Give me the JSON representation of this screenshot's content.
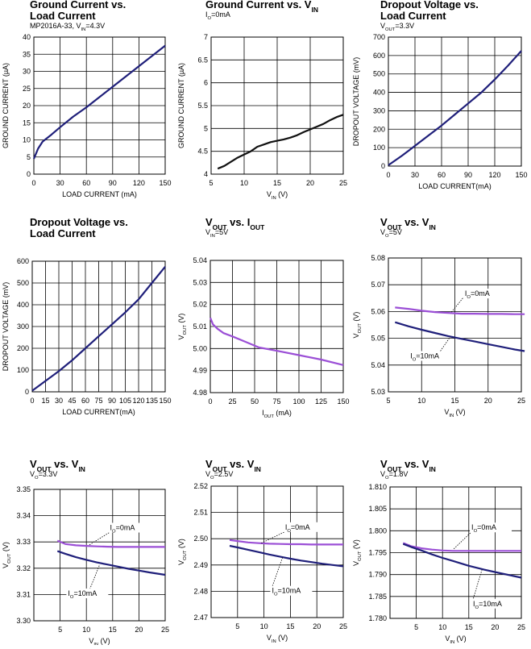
{
  "chart_data": [
    {
      "type": "line",
      "title": "Ground Current vs.",
      "title2": "Load Current",
      "subtitle": "MP2016A-33, V",
      "subtitle_sub": "IN",
      "subtitle_rest": "=4.3V",
      "xlabel": "LOAD CURRENT (mA)",
      "ylabel": "GROUND CURRENT (µA)",
      "xlim": [
        0,
        150
      ],
      "ylim": [
        0,
        40
      ],
      "xticks": [
        "0",
        "30",
        "60",
        "90",
        "120",
        "150"
      ],
      "yticks": [
        "0",
        "5",
        "10",
        "15",
        "20",
        "25",
        "30",
        "35",
        "40"
      ],
      "series": [
        {
          "color": "#1f1f7a",
          "x": [
            0,
            5,
            10,
            20,
            30,
            45,
            60,
            75,
            90,
            105,
            120,
            135,
            150
          ],
          "y": [
            4.5,
            7.5,
            9.5,
            11.5,
            13.7,
            16.8,
            19.5,
            22.5,
            25.5,
            28.5,
            31.5,
            34.5,
            37.5
          ]
        }
      ]
    },
    {
      "type": "line",
      "title": "Ground Current vs. V",
      "title_sub": "IN",
      "subtitle": "I",
      "subtitle_sub": "O",
      "subtitle_rest": "=0mA",
      "xlabel": "V",
      "xlabel_sub": "IN",
      "xlabel_rest": " (V)",
      "ylabel": "GROUND CURRENT (µA)",
      "xlim": [
        5,
        25
      ],
      "ylim": [
        4,
        7
      ],
      "xticks": [
        "5",
        "10",
        "15",
        "20",
        "25"
      ],
      "yticks": [
        "4",
        "4.5",
        "5",
        "5.5",
        "6",
        "6.5",
        "7"
      ],
      "series": [
        {
          "color": "#111111",
          "x": [
            6,
            7,
            8,
            9,
            10,
            11,
            12,
            13,
            14,
            15,
            16,
            17,
            18,
            19,
            20,
            21,
            22,
            23,
            24,
            25
          ],
          "y": [
            4.12,
            4.18,
            4.27,
            4.36,
            4.43,
            4.5,
            4.6,
            4.65,
            4.7,
            4.73,
            4.76,
            4.8,
            4.85,
            4.92,
            4.98,
            5.04,
            5.1,
            5.18,
            5.25,
            5.3
          ]
        }
      ]
    },
    {
      "type": "line",
      "title": "Dropout Voltage vs.",
      "title2": "Load Current",
      "subtitle": "V",
      "subtitle_sub": "OUT",
      "subtitle_rest": "=3.3V",
      "xlabel": "LOAD CURRENT(mA)",
      "ylabel": "DROPOUT VOLTAGE (mV)",
      "xlim": [
        0,
        150
      ],
      "ylim": [
        0,
        700
      ],
      "xticks": [
        "0",
        "30",
        "60",
        "90",
        "120",
        "150"
      ],
      "yticks": [
        "0",
        "100",
        "200",
        "300",
        "400",
        "500",
        "600",
        "700"
      ],
      "series": [
        {
          "color": "#1f1f7a",
          "x": [
            0,
            15,
            30,
            45,
            60,
            75,
            90,
            105,
            120,
            135,
            150
          ],
          "y": [
            5,
            55,
            110,
            165,
            220,
            280,
            340,
            400,
            470,
            545,
            625
          ]
        }
      ]
    },
    {
      "type": "line",
      "title": "Dropout Voltage vs.",
      "title2": "Load Current",
      "xlabel": "LOAD CURRENT(mA)",
      "ylabel": "DROPOUT VOLTAGE (mV)",
      "xlim": [
        0,
        150
      ],
      "ylim": [
        0,
        600
      ],
      "xticks": [
        "0",
        "15",
        "30",
        "45",
        "60",
        "75",
        "90",
        "105",
        "120",
        "135",
        "150"
      ],
      "yticks": [
        "0",
        "100",
        "200",
        "300",
        "400",
        "500",
        "600"
      ],
      "series": [
        {
          "color": "#1f1f7a",
          "x": [
            0,
            15,
            30,
            45,
            60,
            75,
            90,
            105,
            120,
            135,
            150
          ],
          "y": [
            5,
            50,
            95,
            145,
            200,
            255,
            310,
            365,
            425,
            500,
            575
          ]
        }
      ]
    },
    {
      "type": "line",
      "title": "V",
      "title_sub": "OUT",
      "title_rest": " vs. I",
      "title_sub2": "OUT",
      "subtitle": "V",
      "subtitle_sub": "IN",
      "subtitle_rest": "=5V",
      "xlabel": "I",
      "xlabel_sub": "OUT",
      "xlabel_rest": " (mA)",
      "ylabel": "V",
      "ylabel_sub": "OUT",
      "ylabel_rest": " (V)",
      "xlim": [
        0,
        150
      ],
      "ylim": [
        4.98,
        5.04
      ],
      "xticks": [
        "0",
        "25",
        "50",
        "75",
        "100",
        "125",
        "150"
      ],
      "yticks": [
        "4.98",
        "4.99",
        "5.00",
        "5.01",
        "5.02",
        "5.03",
        "5.04"
      ],
      "series": [
        {
          "color": "#9b4fd6",
          "x": [
            0,
            3,
            8,
            15,
            25,
            40,
            55,
            75,
            100,
            125,
            150
          ],
          "y": [
            5.014,
            5.011,
            5.009,
            5.007,
            5.0055,
            5.003,
            5.0005,
            4.999,
            4.997,
            4.995,
            4.9925
          ]
        }
      ]
    },
    {
      "type": "line",
      "title": "V",
      "title_sub": "OUT",
      "title_rest": " vs. V",
      "title_sub2": "IN",
      "subtitle": "V",
      "subtitle_sub": "O",
      "subtitle_rest": "=5V",
      "xlabel": "V",
      "xlabel_sub": "IN",
      "xlabel_rest": " (V)",
      "ylabel": "V",
      "ylabel_sub": "OUT",
      "ylabel_rest": " (V)",
      "xlim": [
        5,
        25
      ],
      "ylim": [
        5.03,
        5.08
      ],
      "xticks": [
        "5",
        "10",
        "15",
        "20",
        "25"
      ],
      "yticks": [
        "5.03",
        "5.04",
        "5.05",
        "5.06",
        "5.07",
        "5.08"
      ],
      "series": [
        {
          "color": "#9b4fd6",
          "x": [
            6,
            8,
            10,
            12,
            14,
            16,
            18,
            20,
            22,
            24,
            25.5
          ],
          "y": [
            5.0615,
            5.061,
            5.0603,
            5.0598,
            5.0595,
            5.0592,
            5.0592,
            5.0591,
            5.0591,
            5.059,
            5.059
          ]
        },
        {
          "color": "#1f1f7a",
          "x": [
            6,
            8,
            10,
            12,
            14,
            16,
            18,
            20,
            22,
            24,
            25.5
          ],
          "y": [
            5.056,
            5.0545,
            5.0532,
            5.052,
            5.0508,
            5.0498,
            5.0488,
            5.0478,
            5.0468,
            5.0458,
            5.0452
          ]
        }
      ],
      "annotations": [
        {
          "pre": "I",
          "sub": "O",
          "post": "=0mA",
          "x": 16.5,
          "y": 5.0658,
          "lx1": 16.2,
          "ly1": 5.065,
          "lx2": 14.5,
          "ly2": 5.0598
        },
        {
          "pre": "I",
          "sub": "O",
          "post": "=10mA",
          "x": 8.3,
          "y": 5.0425,
          "lx1": 12.2,
          "ly1": 5.043,
          "lx2": 14.3,
          "ly2": 5.0505
        }
      ]
    },
    {
      "type": "line",
      "title": "V",
      "title_sub": "OUT",
      "title_rest": " vs. V",
      "title_sub2": "IN",
      "subtitle": "V",
      "subtitle_sub": "O",
      "subtitle_rest": "=3.3V",
      "xlabel": "V",
      "xlabel_sub": "IN",
      "xlabel_rest": " (V)",
      "ylabel": "V",
      "ylabel_sub": "OUT",
      "ylabel_rest": " (V)",
      "xlim": [
        0,
        25
      ],
      "ylim": [
        3.3,
        3.35
      ],
      "xticks": [
        "5",
        "10",
        "15",
        "20",
        "25"
      ],
      "yticks": [
        "3.30",
        "3.31",
        "3.32",
        "3.33",
        "3.34",
        "3.35"
      ],
      "series": [
        {
          "color": "#9b4fd6",
          "x": [
            4.5,
            6,
            8,
            10,
            12,
            14,
            16,
            18,
            20,
            22,
            25
          ],
          "y": [
            3.3305,
            3.3292,
            3.3287,
            3.3285,
            3.3283,
            3.3282,
            3.3281,
            3.3281,
            3.3281,
            3.3281,
            3.3281
          ]
        },
        {
          "color": "#1f1f7a",
          "x": [
            4.5,
            6,
            8,
            10,
            12,
            14,
            16,
            18,
            20,
            22,
            25
          ],
          "y": [
            3.3265,
            3.3255,
            3.3242,
            3.3232,
            3.3222,
            3.3214,
            3.3206,
            3.3198,
            3.3191,
            3.3184,
            3.3175
          ]
        }
      ],
      "annotations": [
        {
          "pre": "I",
          "sub": "O",
          "post": "=0mA",
          "x": 14.5,
          "y": 3.3345,
          "lx1": 14.3,
          "ly1": 3.3335,
          "lx2": 10.5,
          "ly2": 3.3288
        },
        {
          "pre": "I",
          "sub": "O",
          "post": "=10mA",
          "x": 6.5,
          "y": 3.3095,
          "lx1": 10.3,
          "ly1": 3.3103,
          "lx2": 12.5,
          "ly2": 3.3212
        }
      ]
    },
    {
      "type": "line",
      "title": "V",
      "title_sub": "OUT",
      "title_rest": " vs. V",
      "title_sub2": "IN",
      "subtitle": "V",
      "subtitle_sub": "O",
      "subtitle_rest": "=2.5V",
      "xlabel": "V",
      "xlabel_sub": "IN",
      "xlabel_rest": " (V)",
      "ylabel": "V",
      "ylabel_sub": "OUT",
      "ylabel_rest": " (V)",
      "xlim": [
        0,
        25
      ],
      "ylim": [
        2.47,
        2.52
      ],
      "xticks": [
        "5",
        "10",
        "15",
        "20",
        "25"
      ],
      "yticks": [
        "2.47",
        "2.48",
        "2.49",
        "2.50",
        "2.51",
        "2.52"
      ],
      "series": [
        {
          "color": "#9b4fd6",
          "x": [
            3.5,
            5,
            7,
            9,
            11,
            13,
            15,
            17,
            19,
            21,
            23,
            25
          ],
          "y": [
            2.4995,
            2.4991,
            2.4986,
            2.4983,
            2.4981,
            2.498,
            2.4979,
            2.4979,
            2.4978,
            2.4978,
            2.4978,
            2.4978
          ]
        },
        {
          "color": "#1f1f7a",
          "x": [
            3.5,
            5,
            7,
            9,
            11,
            13,
            15,
            17,
            19,
            21,
            23,
            25
          ],
          "y": [
            2.4973,
            2.4967,
            2.4958,
            2.4949,
            2.494,
            2.4932,
            2.4924,
            2.4917,
            2.4911,
            2.4905,
            2.49,
            2.4895
          ]
        }
      ],
      "annotations": [
        {
          "pre": "I",
          "sub": "O",
          "post": "=0mA",
          "x": 14,
          "y": 2.5035,
          "lx1": 13.8,
          "ly1": 2.5025,
          "lx2": 9.5,
          "ly2": 2.4983
        },
        {
          "pre": "I",
          "sub": "O",
          "post": "=10mA",
          "x": 11.5,
          "y": 2.4793,
          "lx1": 11.3,
          "ly1": 2.4803,
          "lx2": 13.5,
          "ly2": 2.4928
        }
      ]
    },
    {
      "type": "line",
      "title": "V",
      "title_sub": "OUT",
      "title_rest": " vs. V",
      "title_sub2": "IN",
      "subtitle": "V",
      "subtitle_sub": "O",
      "subtitle_rest": "=1.8V",
      "xlabel": "V",
      "xlabel_sub": "IN",
      "xlabel_rest": " (V)",
      "ylabel": "V",
      "ylabel_sub": "OUT",
      "ylabel_rest": " (V)",
      "xlim": [
        0,
        25
      ],
      "ylim": [
        1.78,
        1.81
      ],
      "xticks": [
        "5",
        "10",
        "15",
        "20",
        "25"
      ],
      "yticks": [
        "1.780",
        "1.785",
        "1.790",
        "1.795",
        "1.800",
        "1.805",
        "1.810"
      ],
      "series": [
        {
          "color": "#9b4fd6",
          "x": [
            2.5,
            4,
            6,
            8,
            10,
            12,
            15,
            18,
            21,
            25
          ],
          "y": [
            1.7972,
            1.7965,
            1.796,
            1.7957,
            1.7955,
            1.7954,
            1.7954,
            1.7954,
            1.7954,
            1.7954
          ]
        },
        {
          "color": "#1f1f7a",
          "x": [
            2.5,
            4,
            6,
            8,
            10,
            12,
            15,
            18,
            21,
            25
          ],
          "y": [
            1.797,
            1.7963,
            1.7955,
            1.7946,
            1.7938,
            1.7931,
            1.792,
            1.7911,
            1.7903,
            1.7893
          ]
        }
      ],
      "annotations": [
        {
          "pre": "I",
          "sub": "O",
          "post": "=0mA",
          "x": 15.5,
          "y": 1.8002,
          "lx1": 15.3,
          "ly1": 1.7995,
          "lx2": 12,
          "ly2": 1.7957
        },
        {
          "pre": "I",
          "sub": "O",
          "post": "=10mA",
          "x": 15.8,
          "y": 1.7828,
          "lx1": 15.6,
          "ly1": 1.7835,
          "lx2": 17.5,
          "ly2": 1.7911
        }
      ]
    }
  ]
}
